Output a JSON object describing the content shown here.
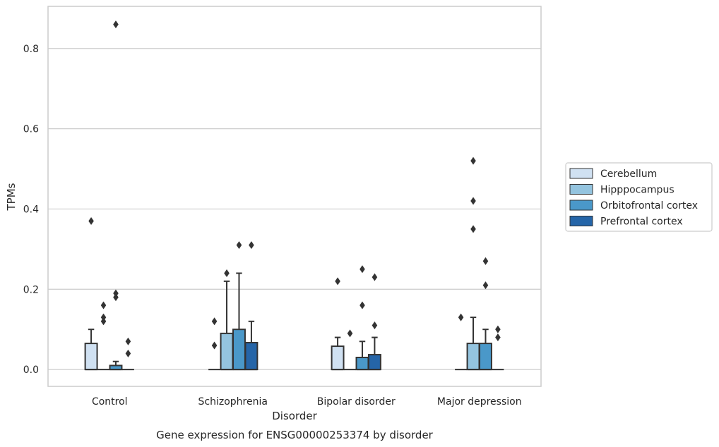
{
  "chart_data": {
    "type": "box",
    "caption": "Gene expression for ENSG00000253374 by disorder",
    "xlabel": "Disorder",
    "ylabel": "TPMs",
    "ylim": [
      -0.042,
      0.905
    ],
    "yticks": [
      "0.0",
      "0.2",
      "0.4",
      "0.6",
      "0.8"
    ],
    "ytick_values": [
      0.0,
      0.2,
      0.4,
      0.6,
      0.8
    ],
    "grid": "horizontal",
    "legend_position": "right",
    "categories": [
      "Control",
      "Schizophrenia",
      "Bipolar disorder",
      "Major depression"
    ],
    "series": [
      {
        "name": "Cerebellum",
        "color": "#d0e1f2",
        "boxes": [
          {
            "q1": 0.0,
            "median": 0.0,
            "q3": 0.065,
            "whisker_low": 0.0,
            "whisker_high": 0.1,
            "outliers": [
              0.37
            ]
          },
          {
            "q1": 0.0,
            "median": 0.0,
            "q3": 0.0,
            "whisker_low": 0.0,
            "whisker_high": 0.0,
            "outliers": [
              0.12,
              0.06
            ]
          },
          {
            "q1": 0.0,
            "median": 0.0,
            "q3": 0.058,
            "whisker_low": 0.0,
            "whisker_high": 0.08,
            "outliers": [
              0.22
            ]
          },
          {
            "q1": 0.0,
            "median": 0.0,
            "q3": 0.0,
            "whisker_low": 0.0,
            "whisker_high": 0.0,
            "outliers": [
              0.13
            ]
          }
        ]
      },
      {
        "name": "Hipppocampus",
        "color": "#94c4df",
        "boxes": [
          {
            "q1": 0.0,
            "median": 0.0,
            "q3": 0.0,
            "whisker_low": 0.0,
            "whisker_high": 0.0,
            "outliers": [
              0.16,
              0.13,
              0.12
            ]
          },
          {
            "q1": 0.0,
            "median": 0.0,
            "q3": 0.09,
            "whisker_low": 0.0,
            "whisker_high": 0.22,
            "outliers": [
              0.24
            ]
          },
          {
            "q1": 0.0,
            "median": 0.0,
            "q3": 0.0,
            "whisker_low": 0.0,
            "whisker_high": 0.0,
            "outliers": [
              0.09
            ]
          },
          {
            "q1": 0.0,
            "median": 0.0,
            "q3": 0.065,
            "whisker_low": 0.0,
            "whisker_high": 0.13,
            "outliers": [
              0.52,
              0.42,
              0.35
            ]
          }
        ]
      },
      {
        "name": "Orbitofrontal cortex",
        "color": "#4a98c9",
        "boxes": [
          {
            "q1": 0.0,
            "median": 0.0,
            "q3": 0.01,
            "whisker_low": 0.0,
            "whisker_high": 0.02,
            "outliers": [
              0.86,
              0.19,
              0.18
            ]
          },
          {
            "q1": 0.0,
            "median": 0.0,
            "q3": 0.1,
            "whisker_low": 0.0,
            "whisker_high": 0.24,
            "outliers": [
              0.31
            ]
          },
          {
            "q1": 0.0,
            "median": 0.0,
            "q3": 0.03,
            "whisker_low": 0.0,
            "whisker_high": 0.07,
            "outliers": [
              0.25,
              0.16
            ]
          },
          {
            "q1": 0.0,
            "median": 0.0,
            "q3": 0.065,
            "whisker_low": 0.0,
            "whisker_high": 0.1,
            "outliers": [
              0.27,
              0.21
            ]
          }
        ]
      },
      {
        "name": "Prefrontal cortex",
        "color": "#2565a8",
        "boxes": [
          {
            "q1": 0.0,
            "median": 0.0,
            "q3": 0.0,
            "whisker_low": 0.0,
            "whisker_high": 0.0,
            "outliers": [
              0.07,
              0.04
            ]
          },
          {
            "q1": 0.0,
            "median": 0.0,
            "q3": 0.067,
            "whisker_low": 0.0,
            "whisker_high": 0.12,
            "outliers": [
              0.31
            ]
          },
          {
            "q1": 0.0,
            "median": 0.0,
            "q3": 0.037,
            "whisker_low": 0.0,
            "whisker_high": 0.08,
            "outliers": [
              0.23,
              0.11
            ]
          },
          {
            "q1": 0.0,
            "median": 0.0,
            "q3": 0.0,
            "whisker_low": 0.0,
            "whisker_high": 0.0,
            "outliers": [
              0.1,
              0.08
            ]
          }
        ]
      }
    ]
  }
}
